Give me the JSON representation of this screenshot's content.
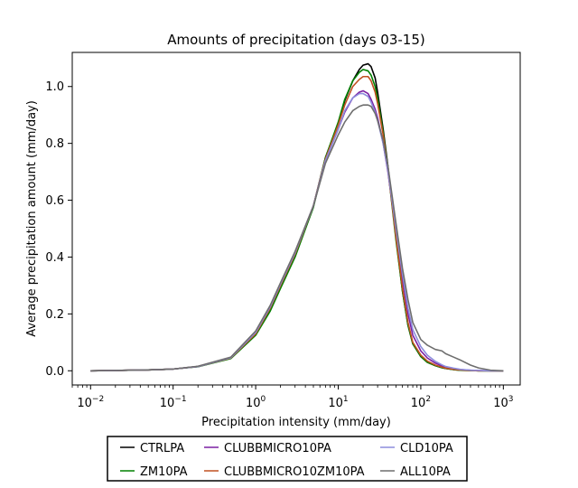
{
  "chart_data": {
    "type": "line",
    "title": "Amounts of precipitation (days 03-15)",
    "xlabel": "Precipitation intensity (mm/day)",
    "ylabel": "Average precipitation amount (mm/day)",
    "x_scale": "log",
    "xlim": [
      0.006,
      1600
    ],
    "ylim": [
      -0.05,
      1.12
    ],
    "x_ticks": [
      {
        "value": 0.01,
        "base": "10",
        "exp": "−2"
      },
      {
        "value": 0.1,
        "base": "10",
        "exp": "−1"
      },
      {
        "value": 1,
        "base": "10",
        "exp": "0"
      },
      {
        "value": 10,
        "base": "10",
        "exp": "1"
      },
      {
        "value": 100,
        "base": "10",
        "exp": "2"
      },
      {
        "value": 1000,
        "base": "10",
        "exp": "3"
      }
    ],
    "y_ticks": [
      {
        "value": 0.0,
        "label": "0.0"
      },
      {
        "value": 0.2,
        "label": "0.2"
      },
      {
        "value": 0.4,
        "label": "0.4"
      },
      {
        "value": 0.6,
        "label": "0.6"
      },
      {
        "value": 0.8,
        "label": "0.8"
      },
      {
        "value": 1.0,
        "label": "1.0"
      }
    ],
    "grid": false,
    "legend_position": "below plot",
    "x": [
      0.01,
      0.02,
      0.05,
      0.1,
      0.2,
      0.5,
      1,
      1.5,
      2,
      3,
      5,
      7,
      10,
      12,
      15,
      18,
      20,
      23,
      25,
      28,
      30,
      35,
      40,
      50,
      60,
      70,
      80,
      100,
      120,
      150,
      180,
      200,
      250,
      300,
      400,
      500,
      700,
      1000
    ],
    "series": [
      {
        "name": "CTRLPA",
        "color": "#000000",
        "values": [
          0.0,
          0.001,
          0.003,
          0.006,
          0.015,
          0.045,
          0.13,
          0.22,
          0.3,
          0.41,
          0.58,
          0.75,
          0.87,
          0.95,
          1.02,
          1.06,
          1.075,
          1.08,
          1.07,
          1.03,
          0.98,
          0.85,
          0.72,
          0.47,
          0.28,
          0.16,
          0.095,
          0.05,
          0.03,
          0.018,
          0.011,
          0.008,
          0.004,
          0.002,
          0.001,
          0.0,
          0.0,
          0.0
        ]
      },
      {
        "name": "ZM10PA",
        "color": "#008000",
        "values": [
          0.0,
          0.001,
          0.003,
          0.006,
          0.014,
          0.043,
          0.125,
          0.21,
          0.29,
          0.4,
          0.575,
          0.75,
          0.875,
          0.955,
          1.02,
          1.05,
          1.06,
          1.055,
          1.04,
          1.0,
          0.96,
          0.84,
          0.71,
          0.46,
          0.28,
          0.16,
          0.095,
          0.05,
          0.03,
          0.018,
          0.011,
          0.008,
          0.004,
          0.002,
          0.001,
          0.0,
          0.0,
          0.0
        ]
      },
      {
        "name": "CLUBBMICRO10PA",
        "color": "#7b1fa2",
        "values": [
          0.0,
          0.001,
          0.003,
          0.006,
          0.015,
          0.046,
          0.135,
          0.225,
          0.305,
          0.415,
          0.58,
          0.74,
          0.85,
          0.91,
          0.96,
          0.98,
          0.985,
          0.975,
          0.955,
          0.92,
          0.89,
          0.8,
          0.7,
          0.49,
          0.32,
          0.2,
          0.125,
          0.07,
          0.045,
          0.027,
          0.017,
          0.012,
          0.007,
          0.004,
          0.002,
          0.001,
          0.0,
          0.0
        ]
      },
      {
        "name": "CLUBBMICRO10ZM10PA",
        "color": "#c05020",
        "values": [
          0.0,
          0.001,
          0.003,
          0.006,
          0.015,
          0.045,
          0.13,
          0.22,
          0.3,
          0.41,
          0.58,
          0.745,
          0.865,
          0.935,
          1.0,
          1.025,
          1.035,
          1.035,
          1.02,
          0.98,
          0.94,
          0.83,
          0.71,
          0.47,
          0.29,
          0.17,
          0.1,
          0.055,
          0.034,
          0.02,
          0.013,
          0.009,
          0.005,
          0.003,
          0.001,
          0.0,
          0.0,
          0.0
        ]
      },
      {
        "name": "CLD10PA",
        "color": "#8c8cdc",
        "values": [
          0.0,
          0.001,
          0.003,
          0.006,
          0.015,
          0.046,
          0.135,
          0.225,
          0.305,
          0.415,
          0.58,
          0.74,
          0.85,
          0.915,
          0.96,
          0.975,
          0.975,
          0.965,
          0.945,
          0.91,
          0.88,
          0.8,
          0.705,
          0.5,
          0.34,
          0.22,
          0.145,
          0.085,
          0.055,
          0.033,
          0.021,
          0.015,
          0.009,
          0.005,
          0.002,
          0.001,
          0.0,
          0.0
        ]
      },
      {
        "name": "ALL10PA",
        "color": "#6e6e6e",
        "values": [
          0.0,
          0.001,
          0.003,
          0.006,
          0.016,
          0.048,
          0.14,
          0.23,
          0.31,
          0.42,
          0.58,
          0.73,
          0.83,
          0.875,
          0.915,
          0.93,
          0.935,
          0.935,
          0.93,
          0.905,
          0.88,
          0.81,
          0.72,
          0.52,
          0.36,
          0.25,
          0.17,
          0.11,
          0.09,
          0.075,
          0.07,
          0.06,
          0.048,
          0.038,
          0.02,
          0.01,
          0.002,
          0.0
        ]
      }
    ],
    "legend": [
      {
        "series": "CTRLPA",
        "color": "#000000"
      },
      {
        "series": "CLUBBMICRO10PA",
        "color": "#7b1fa2"
      },
      {
        "series": "CLD10PA",
        "color": "#8c8cdc"
      },
      {
        "series": "ZM10PA",
        "color": "#008000"
      },
      {
        "series": "CLUBBMICRO10ZM10PA",
        "color": "#c05020"
      },
      {
        "series": "ALL10PA",
        "color": "#6e6e6e"
      }
    ]
  }
}
